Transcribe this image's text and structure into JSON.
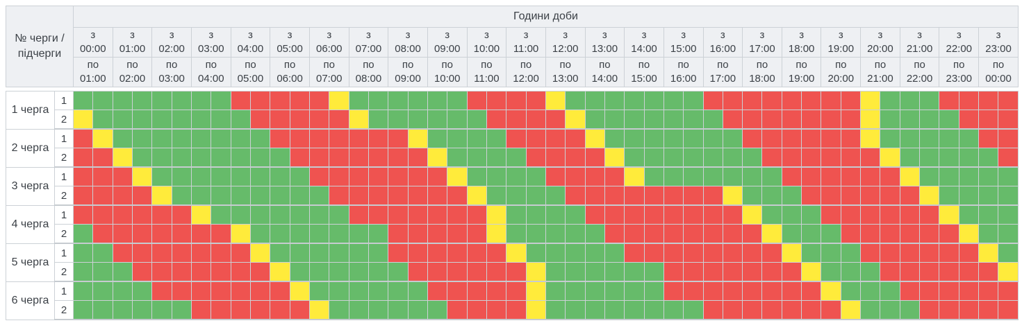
{
  "header": {
    "corner_title": "№ черги / підчерги",
    "hours_title": "Години доби",
    "from_prefix": "з",
    "to_prefix": "по"
  },
  "columns": [
    {
      "from": "00:00",
      "to": "01:00"
    },
    {
      "from": "01:00",
      "to": "02:00"
    },
    {
      "from": "02:00",
      "to": "03:00"
    },
    {
      "from": "03:00",
      "to": "04:00"
    },
    {
      "from": "04:00",
      "to": "05:00"
    },
    {
      "from": "05:00",
      "to": "06:00"
    },
    {
      "from": "06:00",
      "to": "07:00"
    },
    {
      "from": "07:00",
      "to": "08:00"
    },
    {
      "from": "08:00",
      "to": "09:00"
    },
    {
      "from": "09:00",
      "to": "10:00"
    },
    {
      "from": "10:00",
      "to": "11:00"
    },
    {
      "from": "11:00",
      "to": "12:00"
    },
    {
      "from": "12:00",
      "to": "13:00"
    },
    {
      "from": "13:00",
      "to": "14:00"
    },
    {
      "from": "14:00",
      "to": "15:00"
    },
    {
      "from": "15:00",
      "to": "16:00"
    },
    {
      "from": "16:00",
      "to": "17:00"
    },
    {
      "from": "17:00",
      "to": "18:00"
    },
    {
      "from": "18:00",
      "to": "19:00"
    },
    {
      "from": "19:00",
      "to": "20:00"
    },
    {
      "from": "20:00",
      "to": "21:00"
    },
    {
      "from": "21:00",
      "to": "22:00"
    },
    {
      "from": "22:00",
      "to": "23:00"
    },
    {
      "from": "23:00",
      "to": "00:00"
    }
  ],
  "cells_per_hour": 2,
  "colors": {
    "G": "#66bb6a",
    "R": "#ef5350",
    "Y": "#ffeb3b"
  },
  "queues": [
    {
      "label": "1 черга",
      "subqueues": [
        {
          "number": "1",
          "cells": "GGGGGGGGRRRRRYGGGGGGRRRRYGGGGGGGRRRRRRRRYGGGRRRR"
        },
        {
          "number": "2",
          "cells": "YGGGGGGGGRRRRRYGGGGGGRRRRYGGGGGGGRRRRRRRYGGGGRRR"
        }
      ]
    },
    {
      "label": "2 черга",
      "subqueues": [
        {
          "number": "1",
          "cells": "RYGGGGGGGGRRRRRRRYGGGGRRRRYGGGGGGGRRRRRRYGGGGGRR"
        },
        {
          "number": "2",
          "cells": "RRYGGGGGGGGRRRRRRRYGGGGRRRRYGGGGGGGRRRRRRYGGGGGR"
        }
      ]
    },
    {
      "label": "3 черга",
      "subqueues": [
        {
          "number": "1",
          "cells": "RRRYGGGGGGGGRRRRRRRYGGGGRRRRYGGGGGGGRRRRRRYGGGGG"
        },
        {
          "number": "2",
          "cells": "RRRRYGGGGGGGGRRRRRRRYGGGGRRRRRRRRYGGGRRRRRRYGGGG"
        }
      ]
    },
    {
      "label": "4 черга",
      "subqueues": [
        {
          "number": "1",
          "cells": "RRRRRRYGGGGGGGRRRRRRRYGGGGRRRRRRRRYGGGRRRRRRYGGG"
        },
        {
          "number": "2",
          "cells": "GRRRRRRRYGGGGGGGRRRRRYGGGGGRRRRRRRRYGGGRRRRRRYGG"
        }
      ]
    },
    {
      "label": "5 черга",
      "subqueues": [
        {
          "number": "1",
          "cells": "GGRRRRRRRYGGGGGGRRRRRRYGGGGGRRRRRRRRYGGGRRRRRRYG"
        },
        {
          "number": "2",
          "cells": "GGGRRRRRRRYGGGGGGRRRRRRYGGGGGGRRRRRRRYGGGRRRRRRY"
        }
      ]
    },
    {
      "label": "6 черга",
      "subqueues": [
        {
          "number": "1",
          "cells": "GGGGRRRRRRRYGGGGGGRRRRRYGGGGGGRRRRRRRRYGGGRRRRRR"
        },
        {
          "number": "2",
          "cells": "GGGGGGRRRRRRYGGGGGGRRRRYGGGGGGGGRRRRRRRYGGGRRRRR"
        }
      ]
    }
  ]
}
